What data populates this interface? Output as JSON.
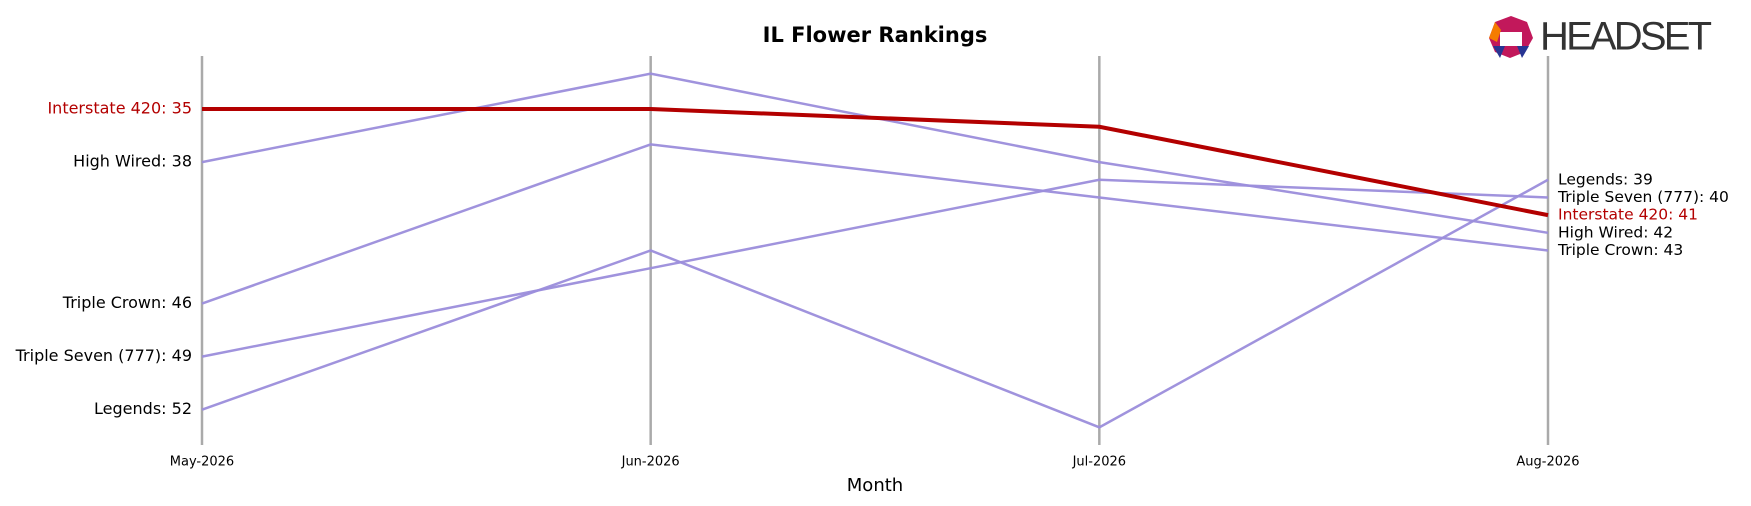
{
  "logo": "HEADSET",
  "chart_data": {
    "type": "bump",
    "title": "IL Flower Rankings",
    "x_label": "Month",
    "categories": [
      "May-2026",
      "Jun-2026",
      "Jul-2026",
      "Aug-2026"
    ],
    "ylim": [
      54,
      32
    ],
    "series": [
      {
        "name": "High Wired",
        "color": "#9b8ddb",
        "values": [
          38,
          33,
          38,
          42
        ],
        "value_labels": [
          "High Wired: 38",
          null,
          null,
          "High Wired: 42"
        ]
      },
      {
        "name": "Triple Crown",
        "color": "#9b8ddb",
        "values": [
          46,
          37,
          40,
          43
        ],
        "value_labels": [
          "Triple Crown: 46",
          null,
          null,
          "Triple Crown: 43"
        ]
      },
      {
        "name": "Triple Seven (777)",
        "color": "#9b8ddb",
        "values": [
          49,
          44,
          39,
          40
        ],
        "value_labels": [
          "Triple Seven (777): 49",
          null,
          null,
          "Triple Seven (777): 40"
        ]
      },
      {
        "name": "Legends",
        "color": "#9b8ddb",
        "values": [
          52,
          43,
          53,
          39
        ],
        "value_labels": [
          "Legends: 52",
          null,
          null,
          "Legends: 39"
        ]
      },
      {
        "name": "Interstate 420",
        "color": "#b30000",
        "highlight": true,
        "values": [
          35,
          35,
          36,
          41
        ],
        "value_labels": [
          "Interstate 420: 35",
          null,
          null,
          "Interstate 420: 41"
        ]
      }
    ]
  }
}
